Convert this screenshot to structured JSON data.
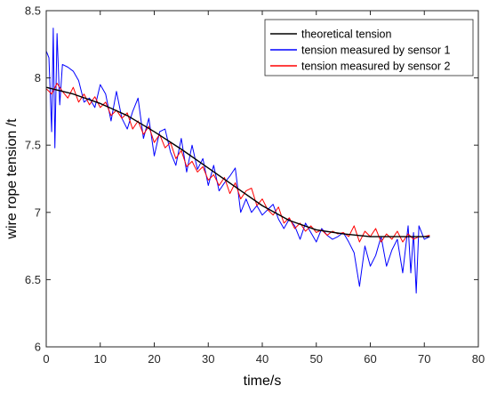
{
  "chart_data": {
    "type": "line",
    "title": "",
    "xlabel": "time/s",
    "ylabel": "wire rope tension /t",
    "xlim": [
      0,
      80
    ],
    "ylim": [
      6,
      8.5
    ],
    "xticks": [
      0,
      10,
      20,
      30,
      40,
      50,
      60,
      70,
      80
    ],
    "yticks": [
      6,
      6.5,
      7,
      7.5,
      8,
      8.5
    ],
    "grid": false,
    "legend_position": "top-right",
    "series": [
      {
        "name": "theoretical tension",
        "color": "#000000",
        "x": [
          0,
          5,
          10,
          15,
          20,
          25,
          30,
          35,
          40,
          45,
          50,
          55,
          60,
          65,
          70,
          71
        ],
        "y": [
          7.93,
          7.88,
          7.81,
          7.72,
          7.6,
          7.47,
          7.33,
          7.19,
          7.05,
          6.94,
          6.87,
          6.84,
          6.82,
          6.82,
          6.82,
          6.82
        ]
      },
      {
        "name": "tension measured by sensor 1",
        "color": "#0000ff",
        "x": [
          0,
          0.5,
          1,
          1.3,
          1.6,
          2,
          2.5,
          3,
          4,
          5,
          6,
          7,
          8,
          9,
          10,
          11,
          12,
          13,
          14,
          15,
          16,
          17,
          18,
          19,
          20,
          21,
          22,
          23,
          24,
          25,
          26,
          27,
          28,
          29,
          30,
          31,
          32,
          33,
          34,
          35,
          36,
          37,
          38,
          39,
          40,
          41,
          42,
          43,
          44,
          45,
          46,
          47,
          48,
          49,
          50,
          51,
          52,
          53,
          54,
          55,
          56,
          57,
          58,
          59,
          60,
          61,
          62,
          63,
          64,
          65,
          66,
          67,
          67.5,
          68,
          68.5,
          69,
          70,
          71
        ],
        "y": [
          8.2,
          8.15,
          7.6,
          8.37,
          7.48,
          8.33,
          7.8,
          8.1,
          8.08,
          8.05,
          7.98,
          7.82,
          7.85,
          7.78,
          7.95,
          7.88,
          7.68,
          7.9,
          7.7,
          7.62,
          7.75,
          7.85,
          7.55,
          7.7,
          7.42,
          7.6,
          7.62,
          7.45,
          7.35,
          7.55,
          7.3,
          7.5,
          7.32,
          7.4,
          7.2,
          7.35,
          7.16,
          7.22,
          7.27,
          7.33,
          7.0,
          7.1,
          7.0,
          7.05,
          6.98,
          7.02,
          7.06,
          6.95,
          6.88,
          6.95,
          6.9,
          6.8,
          6.92,
          6.85,
          6.78,
          6.88,
          6.83,
          6.8,
          6.82,
          6.85,
          6.78,
          6.7,
          6.45,
          6.75,
          6.6,
          6.68,
          6.82,
          6.6,
          6.72,
          6.8,
          6.55,
          6.9,
          6.55,
          6.85,
          6.4,
          6.9,
          6.8,
          6.82
        ]
      },
      {
        "name": "tension measured by sensor 2",
        "color": "#ff0000",
        "x": [
          0,
          1,
          2,
          3,
          4,
          5,
          6,
          7,
          8,
          9,
          10,
          11,
          12,
          13,
          14,
          15,
          16,
          17,
          18,
          19,
          20,
          21,
          22,
          23,
          24,
          25,
          26,
          27,
          28,
          29,
          30,
          31,
          32,
          33,
          34,
          35,
          36,
          37,
          38,
          39,
          40,
          41,
          42,
          43,
          44,
          45,
          46,
          47,
          48,
          49,
          50,
          51,
          52,
          53,
          54,
          55,
          56,
          57,
          58,
          59,
          60,
          61,
          62,
          63,
          64,
          65,
          66,
          67,
          68,
          69,
          70,
          71
        ],
        "y": [
          7.92,
          7.88,
          7.96,
          7.9,
          7.85,
          7.93,
          7.82,
          7.88,
          7.8,
          7.86,
          7.78,
          7.82,
          7.72,
          7.76,
          7.7,
          7.74,
          7.62,
          7.68,
          7.58,
          7.64,
          7.52,
          7.58,
          7.48,
          7.52,
          7.4,
          7.46,
          7.34,
          7.38,
          7.3,
          7.34,
          7.24,
          7.28,
          7.2,
          7.26,
          7.14,
          7.22,
          7.1,
          7.16,
          7.18,
          7.05,
          7.1,
          7.02,
          6.98,
          7.04,
          6.92,
          6.96,
          6.88,
          6.92,
          6.86,
          6.9,
          6.85,
          6.87,
          6.83,
          6.86,
          6.84,
          6.85,
          6.82,
          6.9,
          6.78,
          6.86,
          6.82,
          6.88,
          6.78,
          6.84,
          6.8,
          6.86,
          6.78,
          6.84,
          6.8,
          6.82,
          6.82,
          6.83
        ]
      }
    ]
  }
}
